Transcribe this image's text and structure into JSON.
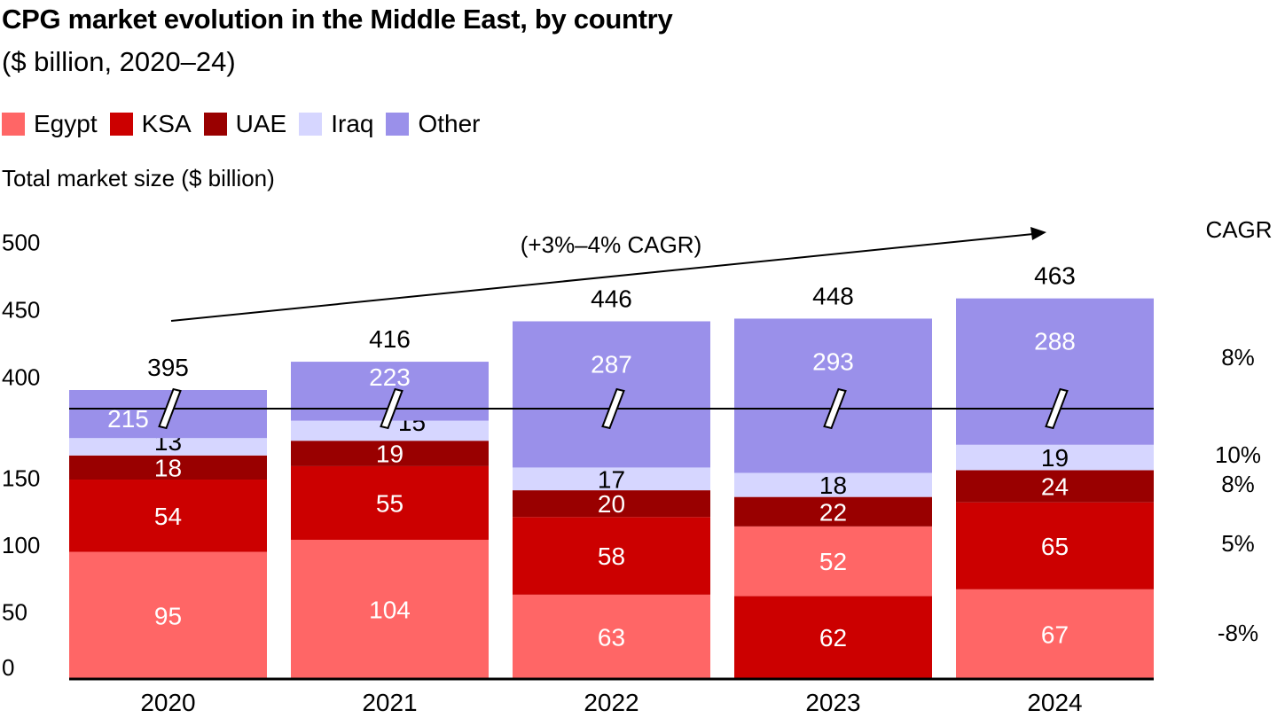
{
  "title": "CPG market evolution in the Middle East, by country",
  "subtitle": "($ billion, 2020–24)",
  "axis_caption": "Total market size ($ billion)",
  "legend": [
    {
      "name": "Egypt",
      "color": "#FF6666"
    },
    {
      "name": "KSA",
      "color": "#CC0000"
    },
    {
      "name": "UAE",
      "color": "#990000"
    },
    {
      "name": "Iraq",
      "color": "#D6D6FF"
    },
    {
      "name": "Other",
      "color": "#9A90EA"
    }
  ],
  "chart_data": {
    "type": "stacked-bar",
    "title": "CPG market evolution in the Middle East, by country",
    "ylabel": "Total market size ($ billion)",
    "categories": [
      "2020",
      "2021",
      "2022",
      "2023",
      "2024"
    ],
    "series": [
      {
        "name": "Egypt",
        "values": [
          95,
          104,
          63,
          52,
          67
        ]
      },
      {
        "name": "KSA",
        "values": [
          54,
          55,
          58,
          62,
          65
        ]
      },
      {
        "name": "UAE",
        "values": [
          18,
          19,
          20,
          22,
          24
        ]
      },
      {
        "name": "Iraq",
        "values": [
          13,
          15,
          17,
          18,
          19
        ]
      },
      {
        "name": "Other",
        "values": [
          215,
          223,
          287,
          293,
          288
        ]
      }
    ],
    "stack_order_note_2023": "KSA below Egypt",
    "totals": [
      395,
      416,
      446,
      448,
      463
    ],
    "y_ticks_lower": [
      0,
      50,
      100,
      150
    ],
    "y_ticks_upper": [
      400,
      450,
      500
    ],
    "axis_break": true,
    "trend_label": "(+3%–4% CAGR)",
    "cagr_header": "CAGR",
    "cagr": {
      "Other": "8%",
      "Iraq": "10%",
      "UAE": "8%",
      "KSA": "5%",
      "Egypt": "-8%"
    }
  }
}
